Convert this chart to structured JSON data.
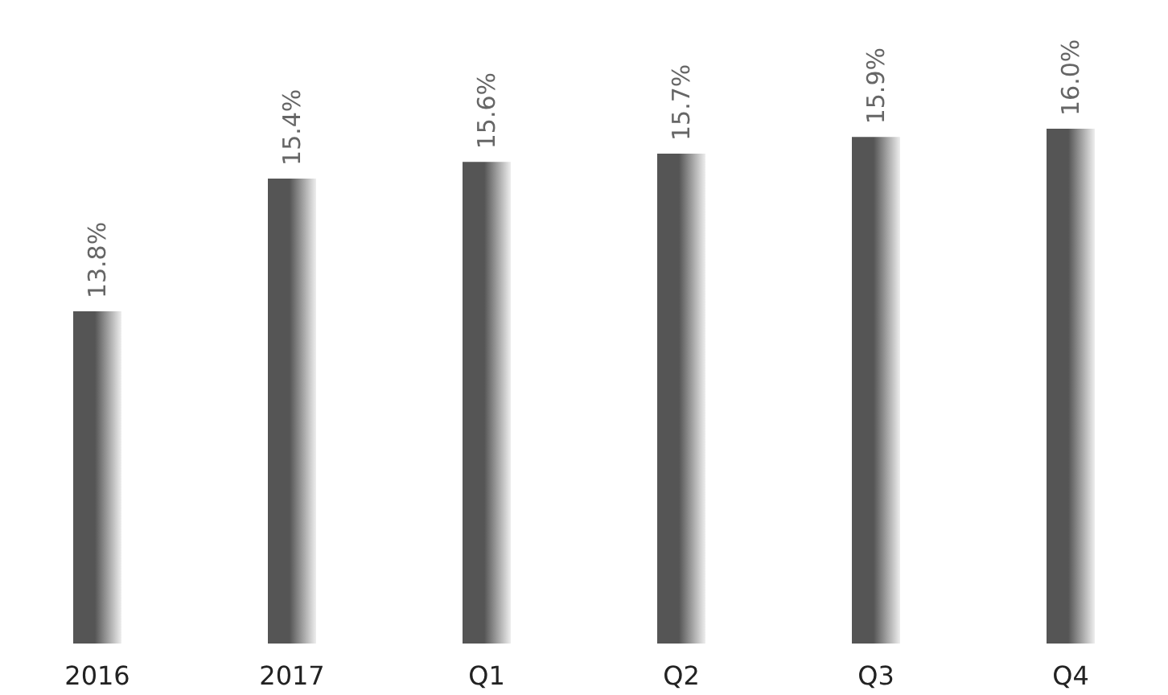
{
  "chart_data": {
    "type": "bar",
    "categories": [
      "2016",
      "2017",
      "Q1",
      "Q2",
      "Q3",
      "Q4"
    ],
    "values": [
      13.8,
      15.4,
      15.6,
      15.7,
      15.9,
      16.0
    ],
    "value_labels": [
      "13.8%",
      "15.4%",
      "15.6%",
      "15.7%",
      "15.9%",
      "16.0%"
    ],
    "color": "#555555",
    "ylim": [
      9.8,
      16.0
    ]
  }
}
